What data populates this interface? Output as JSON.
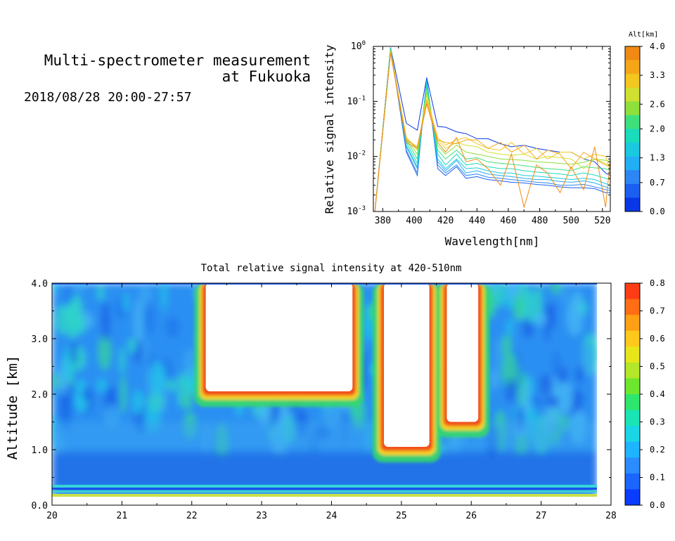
{
  "header": {
    "title_line1": "Multi-spectrometer measurement",
    "title_line2": "at Fukuoka",
    "datetime": "2018/08/28 20:00-27:57"
  },
  "chart_data": [
    {
      "type": "line",
      "title": "",
      "xlabel": "Wavelength[nm]",
      "ylabel": "Relative signal intensity",
      "xlim": [
        374,
        525
      ],
      "ylim": [
        0.001,
        1
      ],
      "yscale": "log",
      "x_ticks": [
        "380",
        "400",
        "420",
        "440",
        "460",
        "480",
        "500",
        "520"
      ],
      "y_ticks": [
        "10^-3",
        "10^-2",
        "10^-1",
        "10^0"
      ],
      "colorbar": {
        "label": "Alt[km]",
        "ticks": [
          "0.0",
          "0.7",
          "1.3",
          "2.0",
          "2.6",
          "3.3",
          "4.0"
        ],
        "range": [
          0,
          4
        ]
      },
      "x": [
        375,
        385,
        395,
        402,
        408,
        415,
        420,
        427,
        433,
        440,
        447,
        455,
        462,
        470,
        478,
        485,
        493,
        500,
        508,
        515,
        522,
        525
      ],
      "series": [
        {
          "alt": 0.0,
          "color": "#0a37e6",
          "values": [
            0.001,
            0.95,
            0.04,
            0.03,
            0.27,
            0.035,
            0.034,
            0.028,
            0.026,
            0.021,
            0.021,
            0.017,
            0.015,
            0.016,
            0.014,
            0.013,
            0.012,
            0.012,
            0.009,
            0.008,
            0.005,
            0.0045
          ]
        },
        {
          "alt": 0.3,
          "color": "#1a5ff0",
          "values": [
            0.001,
            0.95,
            0.012,
            0.0045,
            0.26,
            0.006,
            0.0045,
            0.0065,
            0.004,
            0.0043,
            0.0038,
            0.0036,
            0.0034,
            0.0033,
            0.0031,
            0.003,
            0.0028,
            0.0027,
            0.0027,
            0.0026,
            0.0022,
            0.0022
          ]
        },
        {
          "alt": 0.5,
          "color": "#2d86f5",
          "values": [
            0.001,
            0.94,
            0.013,
            0.005,
            0.25,
            0.007,
            0.005,
            0.007,
            0.0045,
            0.0048,
            0.0042,
            0.004,
            0.0038,
            0.0036,
            0.0034,
            0.0033,
            0.003,
            0.003,
            0.0031,
            0.0028,
            0.0025,
            0.0024
          ]
        },
        {
          "alt": 0.8,
          "color": "#22aef5",
          "values": [
            0.001,
            0.93,
            0.015,
            0.006,
            0.24,
            0.008,
            0.0055,
            0.0085,
            0.005,
            0.0055,
            0.0048,
            0.0045,
            0.0043,
            0.004,
            0.0038,
            0.0038,
            0.0035,
            0.0034,
            0.0036,
            0.0033,
            0.0028,
            0.0026
          ]
        },
        {
          "alt": 1.1,
          "color": "#1ac9e0",
          "values": [
            0.001,
            0.92,
            0.016,
            0.0065,
            0.22,
            0.009,
            0.006,
            0.009,
            0.006,
            0.0062,
            0.0055,
            0.005,
            0.005,
            0.0045,
            0.0044,
            0.0042,
            0.004,
            0.0038,
            0.004,
            0.0038,
            0.0032,
            0.003
          ]
        },
        {
          "alt": 1.4,
          "color": "#19dcbc",
          "values": [
            0.001,
            0.9,
            0.018,
            0.0075,
            0.2,
            0.011,
            0.007,
            0.011,
            0.007,
            0.0075,
            0.0065,
            0.006,
            0.006,
            0.0055,
            0.0052,
            0.005,
            0.0048,
            0.0045,
            0.005,
            0.0046,
            0.004,
            0.0038
          ]
        },
        {
          "alt": 1.8,
          "color": "#3ee07c",
          "values": [
            0.001,
            0.88,
            0.02,
            0.009,
            0.18,
            0.013,
            0.009,
            0.013,
            0.009,
            0.0095,
            0.008,
            0.0075,
            0.0072,
            0.0068,
            0.0063,
            0.006,
            0.0058,
            0.0055,
            0.0065,
            0.0062,
            0.006,
            0.0055
          ]
        },
        {
          "alt": 2.2,
          "color": "#8fe03a",
          "values": [
            0.001,
            0.85,
            0.021,
            0.011,
            0.15,
            0.016,
            0.011,
            0.016,
            0.012,
            0.011,
            0.01,
            0.009,
            0.0088,
            0.0085,
            0.008,
            0.0078,
            0.0075,
            0.0072,
            0.0078,
            0.009,
            0.0085,
            0.0082
          ]
        },
        {
          "alt": 2.6,
          "color": "#d0e030",
          "values": [
            0.001,
            0.82,
            0.022,
            0.013,
            0.13,
            0.02,
            0.014,
            0.018,
            0.016,
            0.015,
            0.012,
            0.011,
            0.0105,
            0.011,
            0.009,
            0.01,
            0.0095,
            0.009,
            0.006,
            0.009,
            0.0075,
            0.0065
          ]
        },
        {
          "alt": 3.0,
          "color": "#f3c720",
          "values": [
            0.001,
            0.8,
            0.022,
            0.014,
            0.11,
            0.022,
            0.016,
            0.02,
            0.022,
            0.017,
            0.014,
            0.013,
            0.018,
            0.011,
            0.014,
            0.009,
            0.012,
            0.012,
            0.009,
            0.011,
            0.01,
            0.0055
          ]
        },
        {
          "alt": 3.4,
          "color": "#f5a618",
          "values": [
            0.001,
            0.78,
            0.02,
            0.015,
            0.1,
            0.02,
            0.018,
            0.017,
            0.02,
            0.02,
            0.014,
            0.018,
            0.012,
            0.016,
            0.009,
            0.013,
            0.011,
            0.006,
            0.012,
            0.009,
            0.007,
            0.0065
          ]
        },
        {
          "alt": 3.8,
          "color": "#f08a14",
          "values": [
            0.001,
            0.75,
            0.018,
            0.014,
            0.09,
            0.018,
            0.012,
            0.022,
            0.008,
            0.009,
            0.006,
            0.003,
            0.011,
            0.0012,
            0.007,
            0.005,
            0.0022,
            0.0065,
            0.0025,
            0.015,
            0.0012,
            0.009
          ]
        }
      ]
    },
    {
      "type": "heatmap",
      "title": "Total relative signal intensity at 420-510nm",
      "xlabel": "",
      "ylabel": "Altitude [km]",
      "xlim": [
        20,
        28
      ],
      "ylim": [
        0,
        4
      ],
      "x_ticks": [
        "20",
        "21",
        "22",
        "23",
        "24",
        "25",
        "26",
        "27",
        "28"
      ],
      "y_ticks": [
        "0.0",
        "1.0",
        "2.0",
        "3.0",
        "4.0"
      ],
      "colorbar": {
        "ticks": [
          "0.0",
          "0.1",
          "0.2",
          "0.3",
          "0.4",
          "0.5",
          "0.6",
          "0.7",
          "0.8"
        ],
        "range": [
          0,
          0.8
        ]
      },
      "data_extent_x": [
        20.0,
        27.8
      ],
      "data_extent_y": [
        0.15,
        4.0
      ],
      "clouds_saturated_white": [
        {
          "x_start": 22.2,
          "x_end": 24.3,
          "base_km": 2.05,
          "top_km": 4.0
        },
        {
          "x_start": 24.75,
          "x_end": 25.4,
          "base_km": 1.05,
          "top_km": 4.0
        },
        {
          "x_start": 25.65,
          "x_end": 26.1,
          "base_km": 1.5,
          "top_km": 4.0
        }
      ]
    }
  ]
}
